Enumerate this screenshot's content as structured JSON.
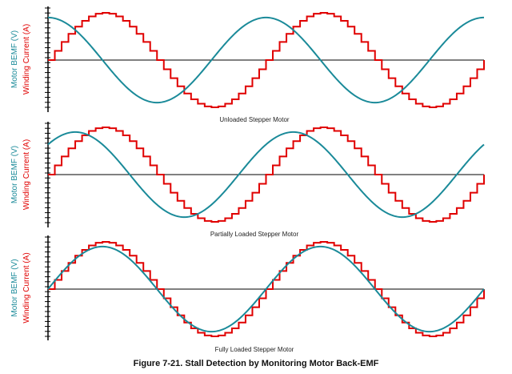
{
  "figure": {
    "caption": "Figure 7-21. Stall Detection by Monitoring Motor Back-EMF"
  },
  "colors": {
    "bemf": "#1a8a99",
    "current": "#e00000",
    "axis": "#000000"
  },
  "chart_data": [
    {
      "type": "line",
      "title": "Unloaded Stepper Motor",
      "ylabel_bemf": "Motor BEMF (V)",
      "ylabel_current": "Winding Current (A)",
      "x_range": [
        0,
        2
      ],
      "y_range": [
        -1.1,
        1.1
      ],
      "series": [
        {
          "key": "current",
          "shape": "staircase-sine",
          "steps_per_half_cycle": 16,
          "cycles": 2,
          "amplitude": 1.0,
          "phase_cycles": 0.0
        },
        {
          "key": "bemf",
          "shape": "sine",
          "cycles": 2,
          "amplitude": 0.9,
          "phase_cycles": -0.25
        }
      ]
    },
    {
      "type": "line",
      "title": "Partially Loaded Stepper Motor",
      "ylabel_bemf": "Motor BEMF (V)",
      "ylabel_current": "Winding Current (A)",
      "x_range": [
        0,
        2
      ],
      "y_range": [
        -1.1,
        1.1
      ],
      "series": [
        {
          "key": "current",
          "shape": "staircase-sine",
          "steps_per_half_cycle": 16,
          "cycles": 2,
          "amplitude": 1.0,
          "phase_cycles": 0.0
        },
        {
          "key": "bemf",
          "shape": "sine",
          "cycles": 2,
          "amplitude": 0.9,
          "phase_cycles": -0.125
        }
      ]
    },
    {
      "type": "line",
      "title": "Fully Loaded Stepper Motor",
      "ylabel_bemf": "Motor BEMF (V)",
      "ylabel_current": "Winding Current (A)",
      "x_range": [
        0,
        2
      ],
      "y_range": [
        -1.1,
        1.1
      ],
      "series": [
        {
          "key": "current",
          "shape": "staircase-sine",
          "steps_per_half_cycle": 16,
          "cycles": 2,
          "amplitude": 1.0,
          "phase_cycles": 0.0
        },
        {
          "key": "bemf",
          "shape": "sine",
          "cycles": 2,
          "amplitude": 0.9,
          "phase_cycles": 0.0
        }
      ]
    }
  ]
}
